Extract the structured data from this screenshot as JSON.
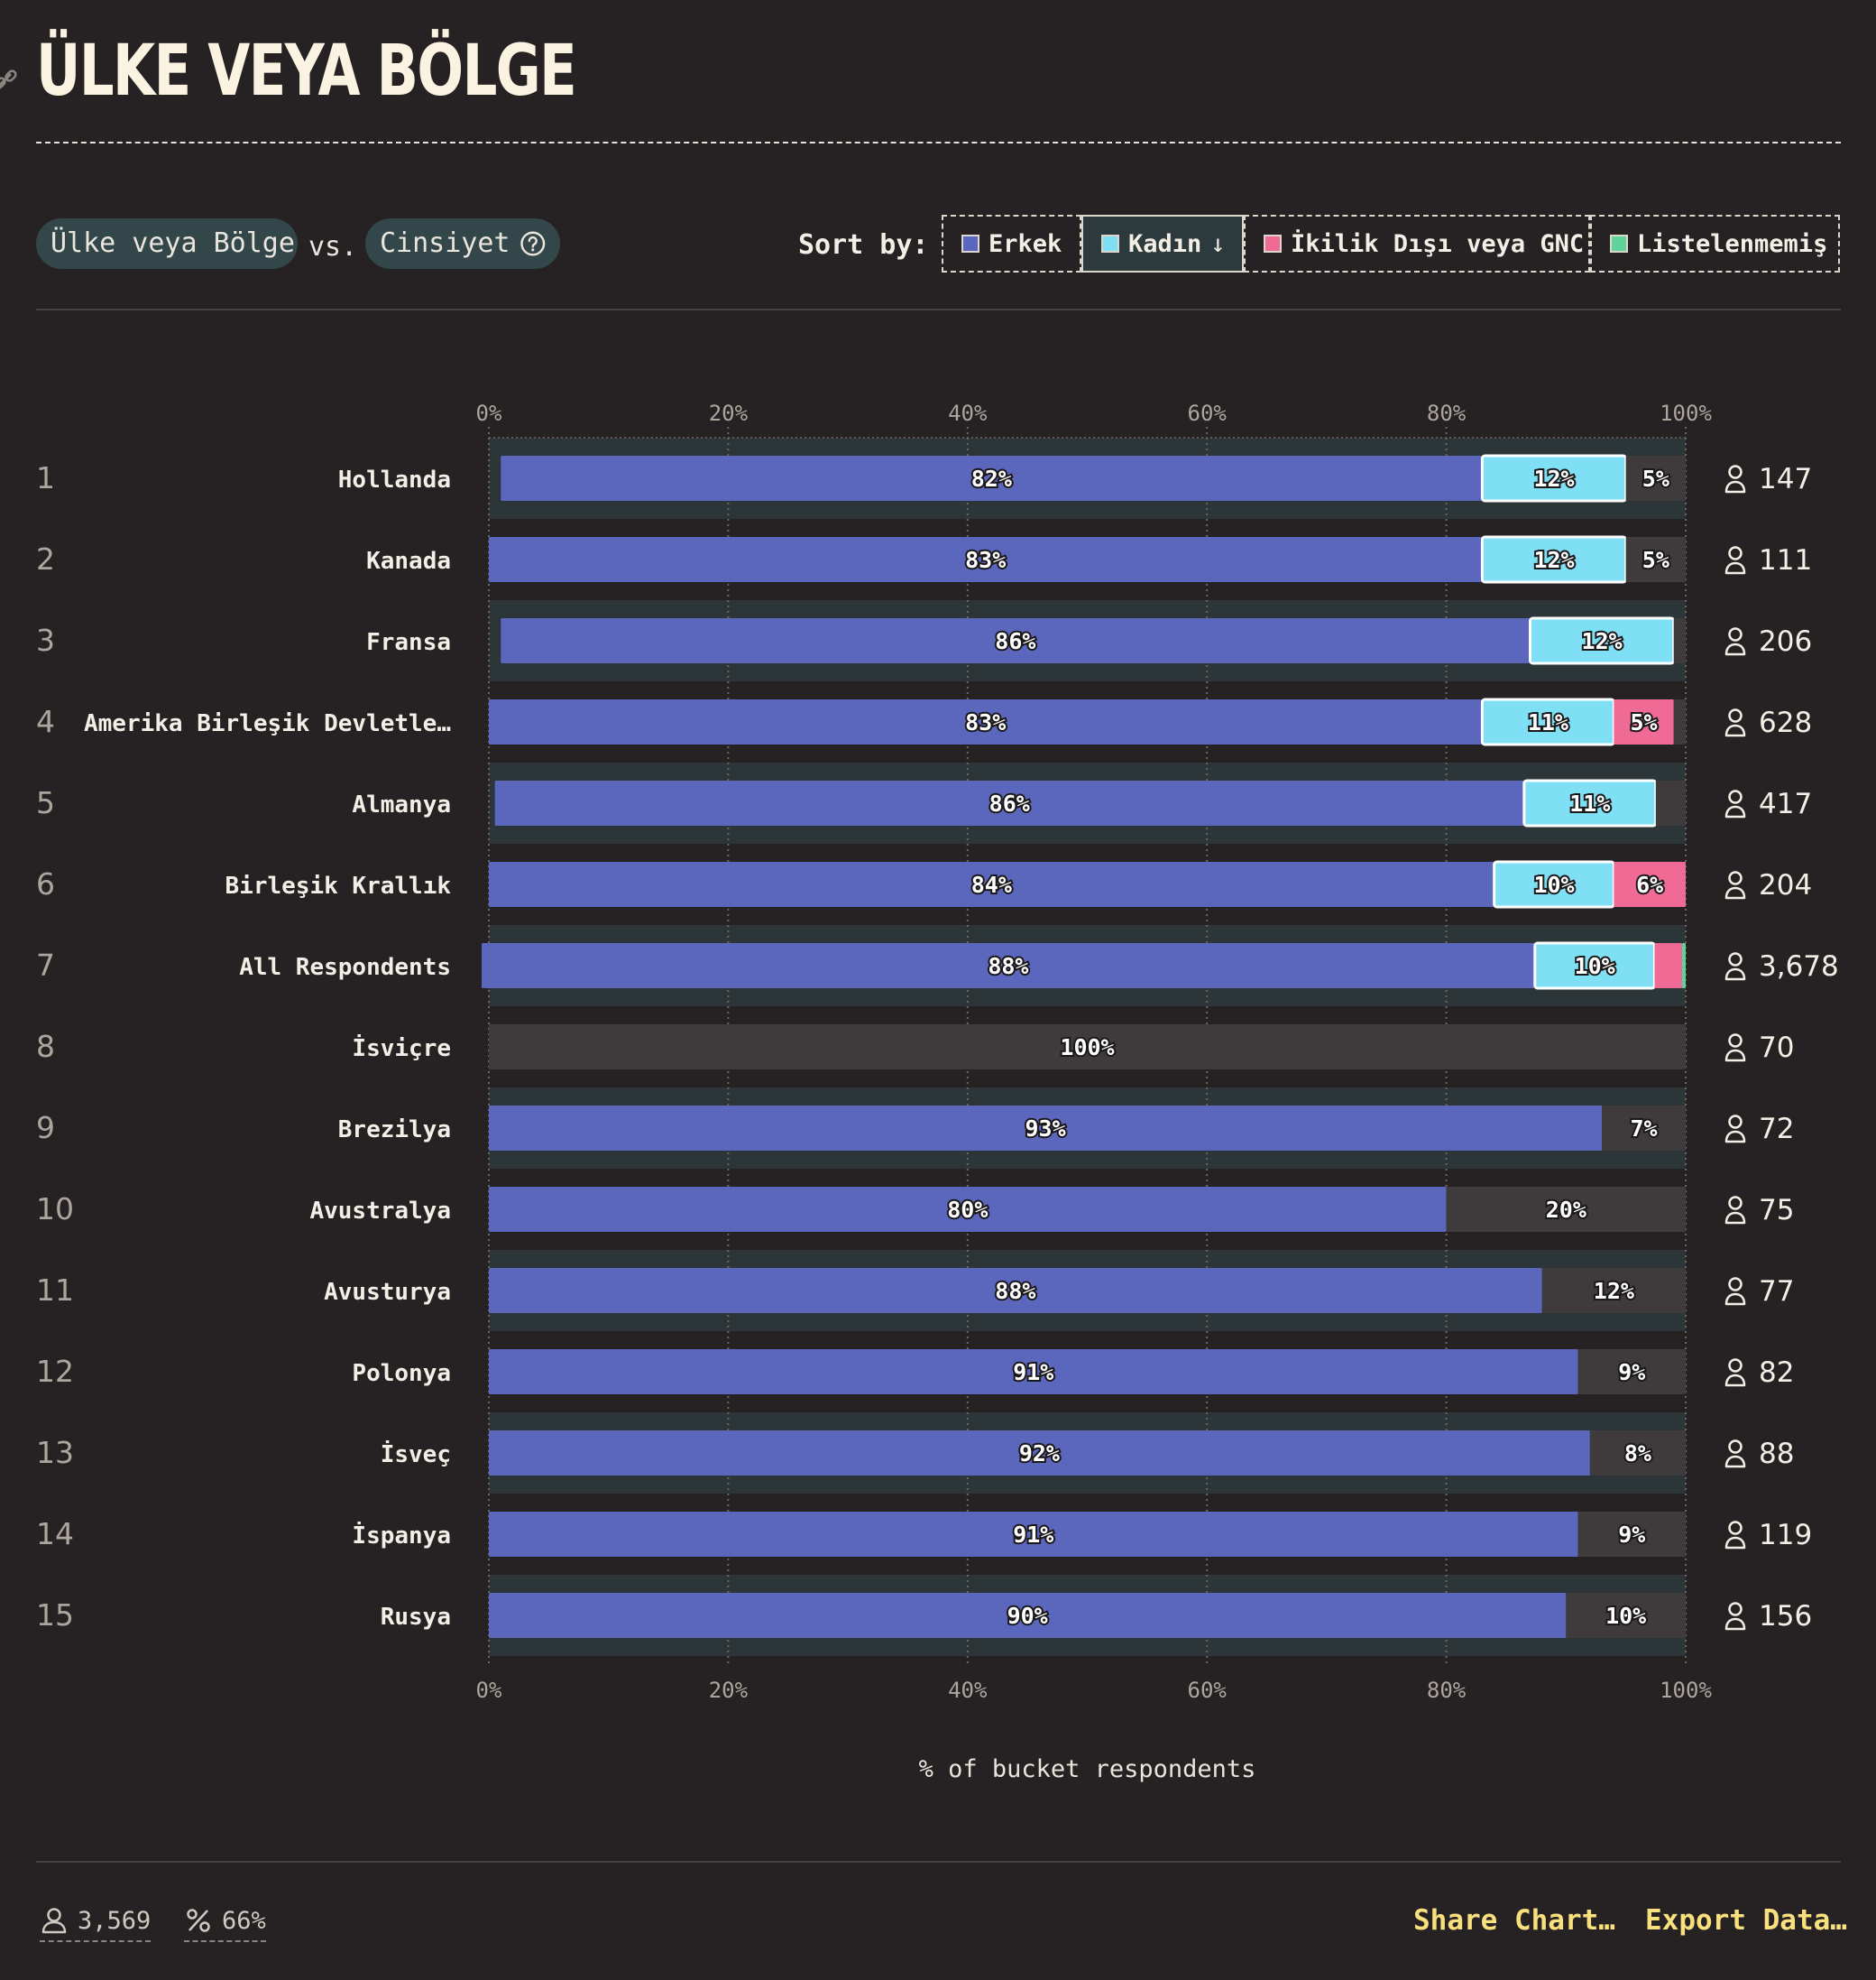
{
  "header": {
    "title": "ÜLKE VEYA BÖLGE"
  },
  "controls": {
    "row_dimension": "Ülke veya Bölge",
    "vs_label": "vs.",
    "column_dimension": "Cinsiyet",
    "sort_label": "Sort by:",
    "sort_options": [
      {
        "label": "Erkek",
        "color": "#5b66bd",
        "active": false
      },
      {
        "label": "Kadın",
        "color": "#7fe0f5",
        "active": true,
        "arrow": "↓"
      },
      {
        "label": "İkilik Dışı veya GNC",
        "color": "#f06a96",
        "active": false
      },
      {
        "label": "Listelenmemiş",
        "color": "#5fd39a",
        "active": false
      }
    ]
  },
  "chart_data": {
    "type": "bar",
    "stacked": true,
    "orientation": "horizontal",
    "xlabel": "% of bucket respondents",
    "xlim": [
      0,
      100
    ],
    "x_ticks": [
      "0%",
      "20%",
      "40%",
      "60%",
      "80%",
      "100%"
    ],
    "grid": true,
    "categories": [
      "Hollanda",
      "Kanada",
      "Fransa",
      "Amerika Birleşik Devletle…",
      "Almanya",
      "Birleşik Krallık",
      "All Respondents",
      "İsviçre",
      "Brezilya",
      "Avustralya",
      "Avusturya",
      "Polonya",
      "İsveç",
      "İspanya",
      "Rusya"
    ],
    "ranks": [
      "1",
      "2",
      "3",
      "4",
      "5",
      "6",
      "7",
      "8",
      "9",
      "10",
      "11",
      "12",
      "13",
      "14",
      "15"
    ],
    "counts": [
      "147",
      "111",
      "206",
      "628",
      "417",
      "204",
      "3,678",
      "70",
      "72",
      "75",
      "77",
      "82",
      "88",
      "119",
      "156"
    ],
    "series": [
      {
        "name": "Erkek",
        "color": "#5b66bd",
        "values": [
          82,
          83,
          86,
          83,
          86,
          84,
          88,
          0,
          93,
          80,
          88,
          91,
          92,
          91,
          90
        ],
        "labels": [
          "82%",
          "83%",
          "86%",
          "83%",
          "86%",
          "84%",
          "88%",
          "",
          "93%",
          "80%",
          "88%",
          "91%",
          "92%",
          "91%",
          "90%"
        ]
      },
      {
        "name": "Kadın",
        "color": "#7fe0f5",
        "values": [
          12,
          12,
          12,
          11,
          11,
          10,
          10,
          0,
          0,
          0,
          0,
          0,
          0,
          0,
          0
        ],
        "labels": [
          "12%",
          "12%",
          "12%",
          "11%",
          "11%",
          "10%",
          "10%",
          "",
          "",
          "",
          "",
          "",
          "",
          "",
          ""
        ]
      },
      {
        "name": "İkilik Dışı veya GNC",
        "color": "#f06a96",
        "values": [
          0,
          0,
          0,
          5,
          0,
          6,
          2.3,
          0,
          0,
          0,
          0,
          0,
          0,
          0,
          0
        ],
        "labels": [
          "",
          "",
          "",
          "5%",
          "",
          "6%",
          "",
          "",
          "",
          "",
          "",
          "",
          "",
          "",
          ""
        ]
      },
      {
        "name": "Listelenmemiş",
        "color": "#5fd39a",
        "values": [
          0,
          0,
          0,
          0,
          0,
          0,
          0.3,
          0,
          0,
          0,
          0,
          0,
          0,
          0,
          0
        ],
        "labels": [
          "",
          "",
          "",
          "",
          "",
          "",
          "",
          "",
          "",
          "",
          "",
          "",
          "",
          "",
          ""
        ]
      },
      {
        "color": "#3f3a3b",
        "values": [
          5,
          5,
          1,
          1,
          2.5,
          0,
          0,
          100,
          7,
          20,
          12,
          9,
          8,
          9,
          10
        ],
        "labels": [
          "5%",
          "5%",
          "",
          "",
          "",
          "",
          "",
          "100%",
          "7%",
          "20%",
          "12%",
          "9%",
          "8%",
          "9%",
          "10%"
        ]
      }
    ]
  },
  "footer": {
    "respondents": "3,569",
    "percent": "66%",
    "share": "Share Chart…",
    "export": "Export Data…"
  }
}
